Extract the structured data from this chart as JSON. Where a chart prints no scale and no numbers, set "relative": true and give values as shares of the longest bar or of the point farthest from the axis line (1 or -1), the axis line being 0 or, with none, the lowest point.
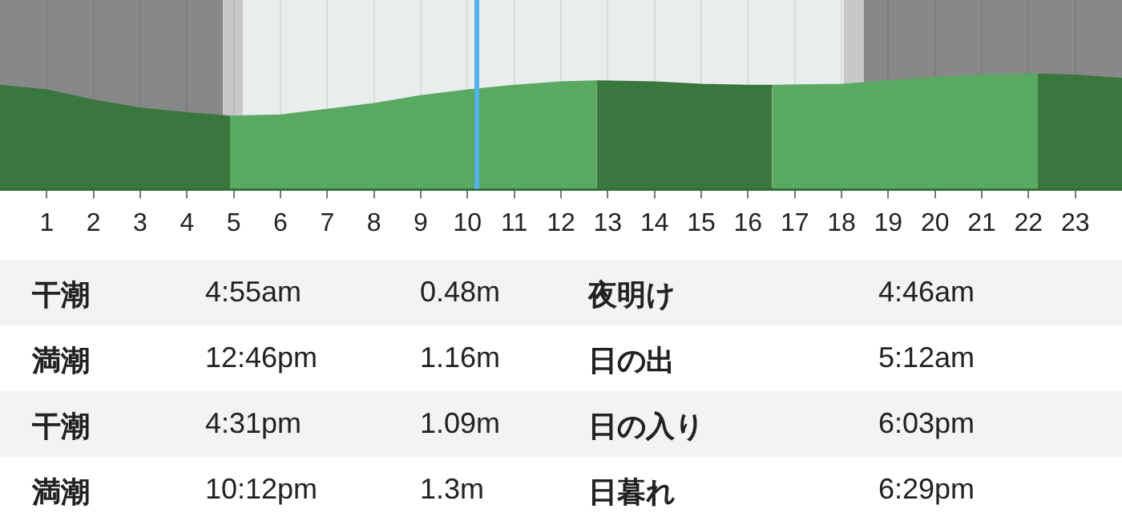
{
  "chart_data": {
    "type": "area",
    "relative": true,
    "xlim": [
      0,
      24
    ],
    "xticks": [
      1,
      2,
      3,
      4,
      5,
      6,
      7,
      8,
      9,
      10,
      11,
      12,
      13,
      14,
      15,
      16,
      17,
      18,
      19,
      20,
      21,
      22,
      23
    ],
    "grid": "x",
    "legend": false,
    "marker": "none",
    "series": [
      {
        "color": "#3a773e",
        "x": [
          0,
          1,
          2,
          3,
          4,
          4.92
        ],
        "values": [
          0.9,
          0.86,
          0.77,
          0.7,
          0.66,
          0.63
        ]
      },
      {
        "color": "#59a962",
        "x": [
          4.92,
          6,
          7,
          8,
          9,
          10,
          11,
          12,
          12.77
        ],
        "values": [
          0.63,
          0.64,
          0.69,
          0.74,
          0.81,
          0.86,
          0.9,
          0.93,
          0.94
        ]
      },
      {
        "color": "#3a773e",
        "x": [
          12.77,
          14,
          15,
          16,
          16.52
        ],
        "values": [
          0.94,
          0.93,
          0.91,
          0.9,
          0.9
        ]
      },
      {
        "color": "#59a962",
        "x": [
          16.52,
          18,
          19,
          20,
          21,
          22.2
        ],
        "values": [
          0.9,
          0.91,
          0.94,
          0.97,
          0.99,
          1
        ]
      },
      {
        "color": "#3a773e",
        "x": [
          22.2,
          23,
          24
        ],
        "values": [
          1,
          0.99,
          0.96
        ]
      }
    ],
    "bands": [
      {
        "axis": "x",
        "from": 0,
        "to": 4.77,
        "color": "#888888"
      },
      {
        "axis": "x",
        "from": 4.77,
        "to": 5.2,
        "color": "#c8c8c8"
      },
      {
        "axis": "x",
        "from": 5.2,
        "to": 18.05,
        "color": "#eaedee"
      },
      {
        "axis": "x",
        "from": 18.05,
        "to": 18.48,
        "color": "#c8c8c8"
      },
      {
        "axis": "x",
        "from": 18.48,
        "to": 24,
        "color": "#888888"
      }
    ],
    "ref_lines": [
      {
        "axis": "x",
        "value": 10.2,
        "color": "#4fb3ea"
      }
    ],
    "annotations": [
      "干潮",
      "4:55am",
      "0.48m",
      "夜明け",
      "4:46am",
      "満潮",
      "12:46pm",
      "1.16m",
      "日の出",
      "5:12am",
      "干潮",
      "4:31pm",
      "1.09m",
      "日の入り",
      "6:03pm",
      "満潮",
      "10:12pm",
      "1.3m",
      "日暮れ",
      "6:29pm"
    ]
  }
}
